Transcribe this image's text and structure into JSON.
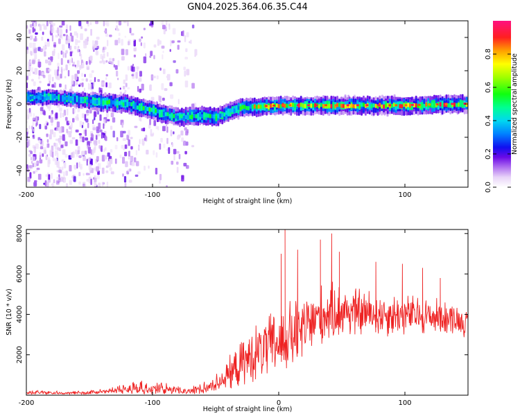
{
  "title": "GN04.2025.364.06.35.C44",
  "chart_data": [
    {
      "type": "heatmap",
      "xlabel": "Height of straight line (km)",
      "ylabel": "Frequency (Hz)",
      "xlim": [
        -200,
        150
      ],
      "ylim": [
        -50,
        50
      ],
      "xticks": [
        -200,
        -100,
        0,
        100
      ],
      "yticks": [
        -40,
        -20,
        0,
        20,
        40
      ],
      "colorbar": {
        "label": "Normalized spectral amplitude",
        "range": [
          0,
          1
        ],
        "ticks": [
          0.0,
          0.2,
          0.4,
          0.6,
          0.8
        ],
        "tick_labels": [
          "0.0",
          "0.2",
          "0.4",
          "0.6",
          "0.8"
        ]
      },
      "ridge": {
        "x": [
          -200,
          -180,
          -150,
          -140,
          -120,
          -100,
          -80,
          -60,
          -50,
          -40,
          -30,
          -20,
          0,
          50,
          100,
          150
        ],
        "frequency": [
          4,
          4,
          2,
          1,
          0,
          -4,
          -8,
          -7,
          -8,
          -5,
          -2,
          -2,
          -1,
          -1,
          -1,
          0
        ]
      }
    },
    {
      "type": "line",
      "xlabel": "Height of straight line (km)",
      "ylabel": "SNR (10 * v/v)",
      "xlim": [
        -200,
        150
      ],
      "ylim": [
        0,
        8200
      ],
      "xticks": [
        -200,
        -100,
        0,
        100
      ],
      "yticks": [
        2000,
        4000,
        6000,
        8000
      ],
      "series": [
        {
          "name": "SNR",
          "color": "#ee2222",
          "envelope": {
            "x": [
              -200,
              -150,
              -130,
              -120,
              -100,
              -80,
              -60,
              -50,
              -40,
              -30,
              -20,
              -10,
              0,
              10,
              20,
              30,
              40,
              50,
              60,
              80,
              100,
              120,
              140,
              150
            ],
            "mean": [
              150,
              150,
              300,
              400,
              450,
              300,
              350,
              600,
              1000,
              1500,
              2000,
              2300,
              2600,
              2900,
              3300,
              3800,
              4100,
              4200,
              4100,
              4000,
              4000,
              3900,
              3800,
              3500
            ],
            "amplitude": [
              100,
              100,
              200,
              350,
              400,
              250,
              300,
              500,
              900,
              1300,
              1600,
              1800,
              2000,
              2100,
              2000,
              1800,
              1700,
              1600,
              1500,
              1300,
              1200,
              1100,
              900,
              700
            ]
          },
          "peaks": [
            [
              5,
              8200
            ],
            [
              2,
              7000
            ],
            [
              15,
              7200
            ],
            [
              33,
              7700
            ],
            [
              42,
              8000
            ],
            [
              48,
              7100
            ],
            [
              77,
              6600
            ],
            [
              98,
              6500
            ],
            [
              114,
              6300
            ],
            [
              128,
              5800
            ]
          ]
        }
      ]
    }
  ]
}
